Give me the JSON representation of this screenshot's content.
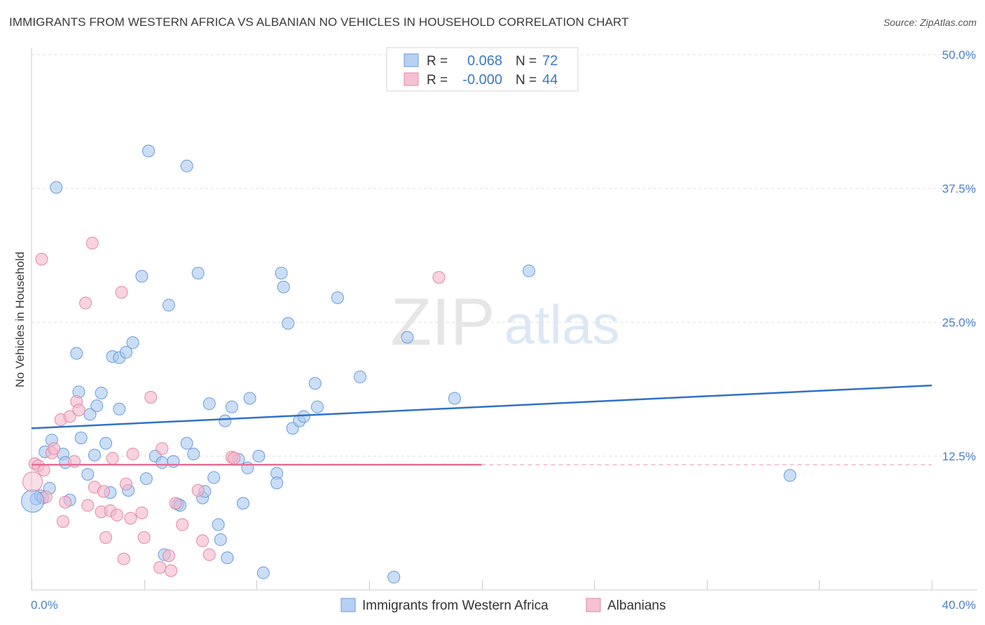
{
  "chart_data": {
    "type": "scatter",
    "title": "IMMIGRANTS FROM WESTERN AFRICA VS ALBANIAN NO VEHICLES IN HOUSEHOLD CORRELATION CHART",
    "source": "Source: ZipAtlas.com",
    "watermark": {
      "part1": "ZIP",
      "part2": "atlas"
    },
    "xlabel": "",
    "ylabel": "No Vehicles in Household",
    "xlim": [
      0,
      40
    ],
    "ylim": [
      0,
      50
    ],
    "x_tick_labels": {
      "left": "0.0%",
      "right": "40.0%"
    },
    "y_ticks": [
      {
        "value": 12.5,
        "label": "12.5%"
      },
      {
        "value": 25.0,
        "label": "25.0%"
      },
      {
        "value": 37.5,
        "label": "37.5%"
      },
      {
        "value": 50.0,
        "label": "50.0%"
      }
    ],
    "legend_top": {
      "rows": [
        {
          "r_label": "R =",
          "r_value": "0.068",
          "n_label": "N =",
          "n_value": "72",
          "color": "#a9c8f2"
        },
        {
          "r_label": "R =",
          "r_value": "-0.000",
          "n_label": "N =",
          "n_value": "44",
          "color": "#f5b6ca"
        }
      ]
    },
    "series": [
      {
        "name": "Immigrants from Western Africa",
        "fill": "#a9c8f2",
        "stroke": "#6b9bd8",
        "line_color": "#2f72c6",
        "trend": {
          "x": [
            0,
            40
          ],
          "y": [
            15.1,
            19.1
          ],
          "dashed_from": null
        },
        "points": [
          [
            0.2,
            8.5
          ],
          [
            0.4,
            8.8
          ],
          [
            0.5,
            8.6
          ],
          [
            0.6,
            12.9
          ],
          [
            0.8,
            9.5
          ],
          [
            0.9,
            14.0
          ],
          [
            1.1,
            37.6
          ],
          [
            1.4,
            12.7
          ],
          [
            1.5,
            11.9
          ],
          [
            1.7,
            8.4
          ],
          [
            2.0,
            22.1
          ],
          [
            2.1,
            18.5
          ],
          [
            2.2,
            14.2
          ],
          [
            2.5,
            10.8
          ],
          [
            2.6,
            16.4
          ],
          [
            2.8,
            12.6
          ],
          [
            2.9,
            17.2
          ],
          [
            3.1,
            18.4
          ],
          [
            3.3,
            13.7
          ],
          [
            3.5,
            9.1
          ],
          [
            3.6,
            21.8
          ],
          [
            3.9,
            21.7
          ],
          [
            3.9,
            16.9
          ],
          [
            4.2,
            22.2
          ],
          [
            4.3,
            9.3
          ],
          [
            4.5,
            23.1
          ],
          [
            4.9,
            29.3
          ],
          [
            5.1,
            10.4
          ],
          [
            5.2,
            41.0
          ],
          [
            5.5,
            12.5
          ],
          [
            5.8,
            11.9
          ],
          [
            5.9,
            3.3
          ],
          [
            6.1,
            26.6
          ],
          [
            6.3,
            12.0
          ],
          [
            6.5,
            8.0
          ],
          [
            6.6,
            7.9
          ],
          [
            6.9,
            13.7
          ],
          [
            6.9,
            39.6
          ],
          [
            7.2,
            12.7
          ],
          [
            7.4,
            29.6
          ],
          [
            7.6,
            8.6
          ],
          [
            7.7,
            9.2
          ],
          [
            7.9,
            17.4
          ],
          [
            8.1,
            10.5
          ],
          [
            8.3,
            6.1
          ],
          [
            8.4,
            4.7
          ],
          [
            8.6,
            15.8
          ],
          [
            8.7,
            3.0
          ],
          [
            8.9,
            17.1
          ],
          [
            9.2,
            12.2
          ],
          [
            9.4,
            8.1
          ],
          [
            9.6,
            11.4
          ],
          [
            9.7,
            17.9
          ],
          [
            10.1,
            12.5
          ],
          [
            10.3,
            1.6
          ],
          [
            10.9,
            10.9
          ],
          [
            10.9,
            10.0
          ],
          [
            11.1,
            29.6
          ],
          [
            11.2,
            28.3
          ],
          [
            11.4,
            24.9
          ],
          [
            11.6,
            15.1
          ],
          [
            11.9,
            15.8
          ],
          [
            12.1,
            16.2
          ],
          [
            12.6,
            19.3
          ],
          [
            12.7,
            17.1
          ],
          [
            13.6,
            27.3
          ],
          [
            14.6,
            19.9
          ],
          [
            16.1,
            1.2
          ],
          [
            16.7,
            23.6
          ],
          [
            18.8,
            17.9
          ],
          [
            22.1,
            29.8
          ],
          [
            33.7,
            10.7
          ]
        ]
      },
      {
        "name": "Albanians",
        "fill": "#f5b6ca",
        "stroke": "#e088a6",
        "line_color": "#e46e96",
        "trend": {
          "x": [
            0,
            20
          ],
          "y": [
            11.7,
            11.7
          ],
          "dashed_to": 40
        },
        "points": [
          [
            0.15,
            11.8
          ],
          [
            0.3,
            11.6
          ],
          [
            0.45,
            30.9
          ],
          [
            0.55,
            11.2
          ],
          [
            0.65,
            8.7
          ],
          [
            0.9,
            12.8
          ],
          [
            1.0,
            13.2
          ],
          [
            1.3,
            15.9
          ],
          [
            1.4,
            6.4
          ],
          [
            1.5,
            8.2
          ],
          [
            1.7,
            16.2
          ],
          [
            1.9,
            12.0
          ],
          [
            2.0,
            17.6
          ],
          [
            2.1,
            16.8
          ],
          [
            2.4,
            26.8
          ],
          [
            2.5,
            7.9
          ],
          [
            2.7,
            32.4
          ],
          [
            2.8,
            9.6
          ],
          [
            3.1,
            7.3
          ],
          [
            3.2,
            9.2
          ],
          [
            3.3,
            4.9
          ],
          [
            3.5,
            7.4
          ],
          [
            3.6,
            12.3
          ],
          [
            3.8,
            7.0
          ],
          [
            4.0,
            27.8
          ],
          [
            4.1,
            2.9
          ],
          [
            4.2,
            9.9
          ],
          [
            4.4,
            6.7
          ],
          [
            4.5,
            12.7
          ],
          [
            4.9,
            7.2
          ],
          [
            5.0,
            4.9
          ],
          [
            5.3,
            18.0
          ],
          [
            5.7,
            2.1
          ],
          [
            5.8,
            13.2
          ],
          [
            6.1,
            3.2
          ],
          [
            6.2,
            1.8
          ],
          [
            6.4,
            8.1
          ],
          [
            6.7,
            6.1
          ],
          [
            7.4,
            9.3
          ],
          [
            7.6,
            4.6
          ],
          [
            7.9,
            3.3
          ],
          [
            8.9,
            12.4
          ],
          [
            9.0,
            12.3
          ],
          [
            18.1,
            29.2
          ]
        ]
      }
    ],
    "legend_bottom": [
      {
        "label": "Immigrants from Western Africa",
        "color": "#a9c8f2"
      },
      {
        "label": "Albanians",
        "color": "#f5b6ca"
      }
    ]
  }
}
